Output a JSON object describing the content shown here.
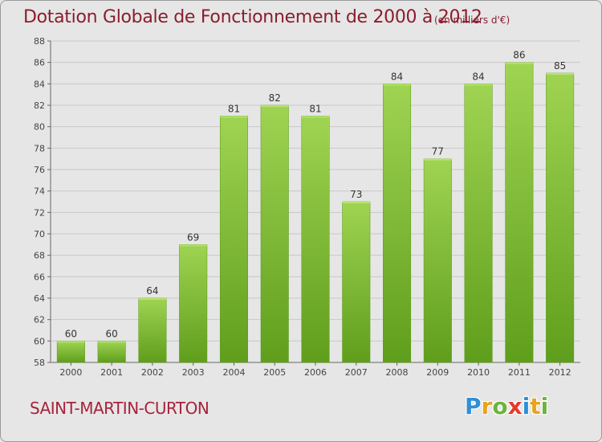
{
  "chart_data": {
    "type": "bar",
    "title": "Dotation Globale de Fonctionnement de 2000 à 2012",
    "unit": "(en milliers d'€)",
    "categories": [
      "2000",
      "2001",
      "2002",
      "2003",
      "2004",
      "2005",
      "2006",
      "2007",
      "2008",
      "2009",
      "2010",
      "2011",
      "2012"
    ],
    "values": [
      60,
      60,
      64,
      69,
      81,
      82,
      81,
      73,
      84,
      77,
      84,
      86,
      85
    ],
    "ylim": [
      58,
      88
    ],
    "yticks": [
      58,
      60,
      62,
      64,
      66,
      68,
      70,
      72,
      74,
      76,
      78,
      80,
      82,
      84,
      86,
      88
    ],
    "grid": true,
    "bar_color": "#7bbf2e"
  },
  "commune": "SAINT-MARTIN-CURTON",
  "logo": {
    "letters": [
      "P",
      "r",
      "o",
      "x",
      "i",
      "t",
      "i"
    ],
    "colors": [
      "#2f8fd6",
      "#e8a31f",
      "#6db33f",
      "#e53b2c",
      "#2f8fd6",
      "#e8a31f",
      "#6db33f"
    ]
  }
}
